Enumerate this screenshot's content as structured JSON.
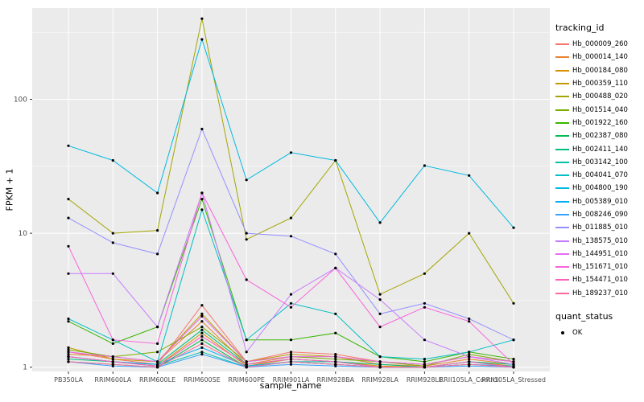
{
  "figure": {
    "background": "#FFFFFF",
    "panel_background": "#EBEBEB",
    "grid_color": "#FFFFFF",
    "tick_color": "#333333",
    "tick_label_color": "#4D4D4D"
  },
  "axes": {
    "x_label": "sample_name",
    "y_label": "FPKM + 1"
  },
  "legend": {
    "tracking_title": "tracking_id",
    "quant_title": "quant_status",
    "quant_item_label": "OK"
  },
  "chart_data": {
    "type": "line",
    "title": "",
    "xlabel": "sample_name",
    "ylabel": "FPKM + 1",
    "y_scale": "log10",
    "y_domain": [
      0.93,
      480
    ],
    "y_major": [
      1,
      10,
      100
    ],
    "y_major_labels": [
      "1",
      "10",
      "100"
    ],
    "y_minor": [
      3.1623,
      31.623,
      316.23
    ],
    "grid": true,
    "legend_position": "right",
    "legend_title": "tracking_id",
    "quant_status_legend": {
      "title": "quant_status",
      "items": [
        "OK"
      ]
    },
    "point_color": "#000000",
    "categories": [
      "PB350LA",
      "RRIM600LA",
      "RRIM600LE",
      "RRIM600SE",
      "RRIM600PE",
      "RRIM901LA",
      "RRIM928BA",
      "RRIM928LA",
      "RRIM928LE",
      "RRII105LA_Control",
      "RRII105LA_Stressed"
    ],
    "series": [
      {
        "name": "Hb_000009_260",
        "color": "#F8766D",
        "values": [
          1.3,
          1.15,
          1.05,
          2.9,
          1.1,
          1.3,
          1.25,
          1.1,
          1.05,
          1.2,
          1.1
        ]
      },
      {
        "name": "Hb_000014_140",
        "color": "#EA8331",
        "values": [
          1.25,
          1.2,
          1.1,
          2.2,
          1.05,
          1.2,
          1.2,
          1.05,
          1.02,
          1.15,
          1.05
        ]
      },
      {
        "name": "Hb_000184_080",
        "color": "#D89000",
        "values": [
          1.2,
          1.1,
          1.02,
          1.8,
          1.02,
          1.15,
          1.1,
          1.02,
          1.0,
          1.1,
          1.02
        ]
      },
      {
        "name": "Hb_000359_110",
        "color": "#C09B00",
        "values": [
          1.4,
          1.15,
          1.1,
          2.5,
          1.1,
          1.25,
          1.2,
          1.1,
          1.05,
          1.2,
          1.1
        ]
      },
      {
        "name": "Hb_000488_020",
        "color": "#A3A500",
        "values": [
          18,
          10,
          10.5,
          400,
          9,
          13,
          35,
          3.5,
          5,
          10,
          3
        ]
      },
      {
        "name": "Hb_001514_040",
        "color": "#7CAE00",
        "values": [
          1.35,
          1.2,
          1.3,
          2.0,
          1.1,
          1.2,
          1.15,
          1.1,
          1.02,
          1.25,
          1.1
        ]
      },
      {
        "name": "Hb_001922_160",
        "color": "#39B600",
        "values": [
          2.2,
          1.5,
          2.0,
          18,
          1.6,
          1.6,
          1.8,
          1.2,
          1.1,
          1.3,
          1.15
        ]
      },
      {
        "name": "Hb_002387_080",
        "color": "#00BB4E",
        "values": [
          1.1,
          1.05,
          1.0,
          1.6,
          1.0,
          1.1,
          1.05,
          1.0,
          1.0,
          1.05,
          1.0
        ]
      },
      {
        "name": "Hb_002411_140",
        "color": "#00BF7D",
        "values": [
          1.15,
          1.1,
          1.05,
          1.9,
          1.05,
          1.15,
          1.1,
          1.05,
          1.0,
          1.1,
          1.05
        ]
      },
      {
        "name": "Hb_003142_100",
        "color": "#00C1A3",
        "values": [
          1.2,
          1.1,
          1.02,
          1.3,
          1.0,
          1.1,
          1.1,
          1.0,
          1.0,
          1.1,
          1.0
        ]
      },
      {
        "name": "Hb_004041_070",
        "color": "#00BFC4",
        "values": [
          2.3,
          1.6,
          1.1,
          15,
          1.6,
          3.0,
          2.5,
          1.2,
          1.15,
          1.3,
          1.6
        ]
      },
      {
        "name": "Hb_004800_190",
        "color": "#00BAE0",
        "values": [
          45,
          35,
          20,
          280,
          25,
          40,
          35,
          12,
          32,
          27,
          11
        ]
      },
      {
        "name": "Hb_005389_010",
        "color": "#00B0F6",
        "values": [
          1.2,
          1.1,
          1.05,
          1.4,
          1.02,
          1.1,
          1.05,
          1.0,
          1.0,
          1.05,
          1.02
        ]
      },
      {
        "name": "Hb_008246_090",
        "color": "#35A2FF",
        "values": [
          1.1,
          1.02,
          1.0,
          1.25,
          1.0,
          1.05,
          1.02,
          1.0,
          1.0,
          1.02,
          1.0
        ]
      },
      {
        "name": "Hb_011885_010",
        "color": "#9590FF",
        "values": [
          13,
          8.5,
          7,
          60,
          10,
          9.5,
          7,
          2.5,
          3,
          2.3,
          1.6
        ]
      },
      {
        "name": "Hb_138575_010",
        "color": "#C77CFF",
        "values": [
          5,
          5,
          2,
          20,
          1.3,
          3.5,
          5.5,
          3.2,
          1.6,
          1.2,
          1.05
        ]
      },
      {
        "name": "Hb_144951_010",
        "color": "#E76BF3",
        "values": [
          1.3,
          1.2,
          1.1,
          2.4,
          1.1,
          1.2,
          1.2,
          1.1,
          1.05,
          1.2,
          1.1
        ]
      },
      {
        "name": "Hb_151671_010",
        "color": "#FA62DB",
        "values": [
          8,
          1.6,
          1.5,
          20,
          4.5,
          2.8,
          5.5,
          2.0,
          2.8,
          2.2,
          1.05
        ]
      },
      {
        "name": "Hb_154471_010",
        "color": "#FF62BC",
        "values": [
          1.2,
          1.1,
          1.02,
          1.7,
          1.05,
          1.15,
          1.1,
          1.0,
          1.0,
          1.1,
          1.0
        ]
      },
      {
        "name": "Hb_189237_010",
        "color": "#FF6A98",
        "values": [
          1.1,
          1.05,
          1.0,
          1.5,
          1.0,
          1.1,
          1.05,
          1.0,
          1.0,
          1.05,
          1.0
        ]
      }
    ]
  }
}
